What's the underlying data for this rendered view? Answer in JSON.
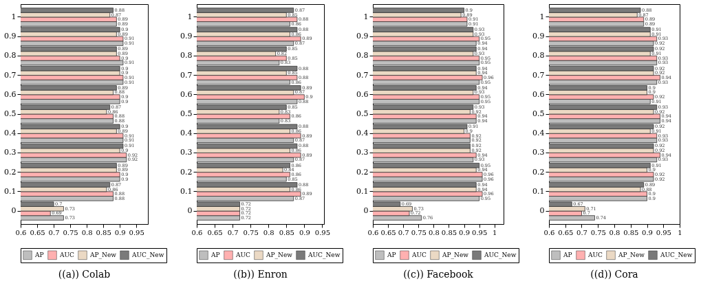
{
  "chart_data": [
    {
      "type": "bar",
      "orientation": "horizontal",
      "title": "((a)) Colab",
      "categories": [
        "1",
        "0.9",
        "0.8",
        "0.7",
        "0.6",
        "0.5",
        "0.4",
        "0.3",
        "0.2",
        "0.1",
        "0"
      ],
      "xlim": [
        0.6,
        0.985
      ],
      "xticks": [
        0.6,
        0.65,
        0.7,
        0.75,
        0.8,
        0.85,
        0.9,
        0.95
      ],
      "data_labels": true,
      "legend": "bottom",
      "grid": false,
      "series": [
        {
          "name": "AP",
          "color": "#bebebe",
          "values": [
            0.89,
            0.91,
            0.91,
            0.91,
            0.9,
            0.88,
            0.91,
            0.92,
            0.9,
            0.88,
            0.73
          ]
        },
        {
          "name": "AUC",
          "color": "#ffb0b0",
          "values": [
            0.89,
            0.91,
            0.9,
            0.91,
            0.9,
            0.88,
            0.91,
            0.92,
            0.9,
            0.88,
            0.69
          ]
        },
        {
          "name": "AP_New",
          "color": "#ebd9c4",
          "values": [
            0.87,
            0.89,
            0.89,
            0.9,
            0.88,
            0.86,
            0.89,
            0.9,
            0.89,
            0.86,
            0.73
          ]
        },
        {
          "name": "AUC_New",
          "color": "#7a7a7a",
          "values": [
            0.88,
            0.9,
            0.89,
            0.9,
            0.89,
            0.87,
            0.9,
            0.91,
            0.89,
            0.87,
            0.7
          ]
        }
      ]
    },
    {
      "type": "bar",
      "orientation": "horizontal",
      "title": "((b)) Enron",
      "categories": [
        "1",
        "0.9",
        "0.8",
        "0.7",
        "0.6",
        "0.5",
        "0.4",
        "0.3",
        "0.2",
        "0.1",
        "0"
      ],
      "xlim": [
        0.6,
        0.955
      ],
      "xticks": [
        0.6,
        0.65,
        0.7,
        0.75,
        0.8,
        0.85,
        0.9,
        0.95
      ],
      "data_labels": true,
      "legend": "bottom",
      "grid": false,
      "series": [
        {
          "name": "AP",
          "color": "#bebebe",
          "values": [
            0.86,
            0.87,
            0.83,
            0.86,
            0.88,
            0.83,
            0.87,
            0.87,
            0.85,
            0.87,
            0.72
          ]
        },
        {
          "name": "AUC",
          "color": "#ffb0b0",
          "values": [
            0.88,
            0.89,
            0.85,
            0.88,
            0.9,
            0.86,
            0.89,
            0.89,
            0.86,
            0.89,
            0.72
          ]
        },
        {
          "name": "AP_New",
          "color": "#ebd9c4",
          "values": [
            0.85,
            0.86,
            0.82,
            0.85,
            0.87,
            0.83,
            0.86,
            0.86,
            0.84,
            0.86,
            0.72
          ]
        },
        {
          "name": "AUC_New",
          "color": "#7a7a7a",
          "values": [
            0.87,
            0.88,
            0.85,
            0.88,
            0.89,
            0.85,
            0.88,
            0.88,
            0.86,
            0.88,
            0.72
          ]
        }
      ]
    },
    {
      "type": "bar",
      "orientation": "horizontal",
      "title": "((c)) Facebook",
      "categories": [
        "1",
        "0.9",
        "0.8",
        "0.7",
        "0.6",
        "0.5",
        "0.4",
        "0.3",
        "0.2",
        "0.1",
        "0"
      ],
      "xlim": [
        0.6,
        1.03
      ],
      "xticks": [
        0.6,
        0.65,
        0.7,
        0.75,
        0.8,
        0.85,
        0.9,
        0.95,
        1
      ],
      "data_labels": true,
      "legend": "bottom",
      "grid": false,
      "series": [
        {
          "name": "AP",
          "color": "#bebebe",
          "values": [
            0.91,
            0.94,
            0.95,
            0.95,
            0.95,
            0.94,
            0.92,
            0.93,
            0.96,
            0.95,
            0.76
          ]
        },
        {
          "name": "AUC",
          "color": "#ffb0b0",
          "values": [
            0.91,
            0.95,
            0.95,
            0.96,
            0.95,
            0.94,
            0.92,
            0.94,
            0.96,
            0.96,
            0.72
          ]
        },
        {
          "name": "AP_New",
          "color": "#ebd9c4",
          "values": [
            0.89,
            0.93,
            0.93,
            0.94,
            0.93,
            0.92,
            0.9,
            0.92,
            0.94,
            0.94,
            0.73
          ]
        },
        {
          "name": "AUC_New",
          "color": "#7a7a7a",
          "values": [
            0.9,
            0.93,
            0.94,
            0.94,
            0.94,
            0.93,
            0.91,
            0.92,
            0.95,
            0.94,
            0.69
          ]
        }
      ]
    },
    {
      "type": "bar",
      "orientation": "horizontal",
      "title": "((d)) Cora",
      "categories": [
        "1",
        "0.9",
        "0.8",
        "0.7",
        "0.6",
        "0.5",
        "0.4",
        "0.3",
        "0.2",
        "0.1",
        "0"
      ],
      "xlim": [
        0.6,
        1
      ],
      "xticks": [
        0.6,
        0.65,
        0.7,
        0.75,
        0.8,
        0.85,
        0.9,
        0.95,
        1
      ],
      "data_labels": true,
      "legend": "bottom",
      "grid": false,
      "series": [
        {
          "name": "AP",
          "color": "#bebebe",
          "values": [
            0.89,
            0.92,
            0.93,
            0.93,
            0.91,
            0.94,
            0.93,
            0.93,
            0.92,
            0.9,
            0.74
          ]
        },
        {
          "name": "AUC",
          "color": "#ffb0b0",
          "values": [
            0.89,
            0.93,
            0.93,
            0.94,
            0.92,
            0.94,
            0.93,
            0.94,
            0.92,
            0.9,
            0.7
          ]
        },
        {
          "name": "AP_New",
          "color": "#ebd9c4",
          "values": [
            0.87,
            0.91,
            0.91,
            0.92,
            0.9,
            0.92,
            0.91,
            0.92,
            0.9,
            0.88,
            0.71
          ]
        },
        {
          "name": "AUC_New",
          "color": "#7a7a7a",
          "values": [
            0.88,
            0.91,
            0.92,
            0.92,
            0.9,
            0.93,
            0.92,
            0.92,
            0.91,
            0.89,
            0.67
          ]
        }
      ]
    }
  ]
}
